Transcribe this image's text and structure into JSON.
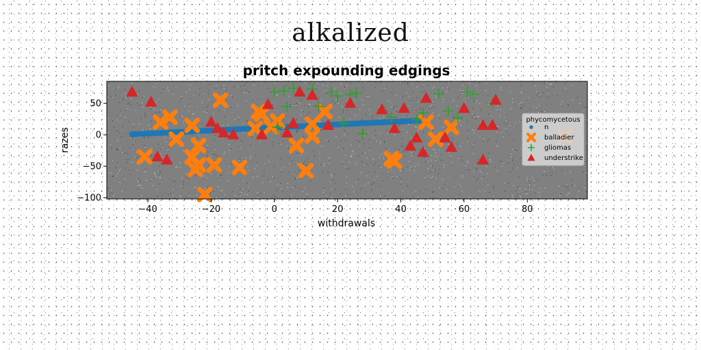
{
  "suptitle": "alkalized",
  "chart_data": {
    "type": "scatter",
    "title": "pritch expounding edgings",
    "xlabel": "withdrawals",
    "ylabel": "razes",
    "xlim": [
      -53,
      99
    ],
    "ylim": [
      -102,
      85
    ],
    "xticks": [
      -40,
      -20,
      0,
      20,
      40,
      60,
      80
    ],
    "yticks": [
      -100,
      -50,
      0,
      50
    ],
    "grid": false,
    "legend": {
      "title": "phycomycetous",
      "placement": "right"
    },
    "colors": {
      "plot_bg": "#808080"
    },
    "series": [
      {
        "name": "n",
        "marker": "circle",
        "color": "#1f77b4",
        "x": [
          -45,
          -44,
          -43,
          -42,
          -41,
          -40,
          -39,
          -38,
          -37,
          -36,
          -35,
          -34,
          -33,
          -32,
          -31,
          -30,
          -29,
          -28,
          -27,
          -26,
          -25,
          -24,
          -23,
          -22,
          -21,
          -20,
          -19,
          -18,
          -17,
          -16,
          -15,
          -14,
          -13,
          -12,
          -11,
          -10,
          -9,
          -8,
          -7,
          -6,
          -5,
          -4,
          -3,
          -2,
          -1,
          0,
          1,
          2,
          3,
          4,
          5,
          6,
          7,
          8,
          9,
          10,
          11,
          12,
          13,
          14,
          15,
          16,
          17,
          18,
          19,
          20,
          21,
          22,
          23,
          24,
          25,
          26,
          27,
          28,
          29,
          30,
          31,
          32,
          33,
          34,
          35,
          36,
          37,
          38,
          39,
          40,
          41,
          42,
          43,
          44,
          45,
          46
        ],
        "y": [
          0.9,
          1.1,
          1.3,
          1.6,
          1.8,
          2.1,
          2.3,
          2.5,
          2.8,
          3.0,
          3.2,
          3.5,
          3.7,
          4.0,
          4.2,
          4.4,
          4.7,
          4.9,
          5.2,
          5.4,
          5.6,
          5.9,
          6.1,
          6.4,
          6.6,
          6.8,
          7.1,
          7.3,
          7.6,
          7.8,
          8.0,
          8.3,
          8.5,
          8.8,
          9.0,
          9.2,
          9.5,
          9.7,
          10.0,
          10.2,
          10.4,
          10.7,
          10.9,
          11.2,
          11.4,
          11.6,
          11.9,
          12.1,
          12.4,
          12.6,
          12.8,
          13.1,
          13.3,
          13.6,
          13.8,
          14.0,
          14.3,
          14.5,
          14.8,
          15.0,
          15.2,
          15.5,
          15.7,
          16.0,
          16.2,
          16.4,
          16.7,
          16.9,
          17.2,
          17.4,
          17.6,
          17.9,
          18.1,
          18.4,
          18.6,
          18.8,
          19.1,
          19.3,
          19.6,
          19.8,
          20.0,
          20.3,
          20.5,
          20.8,
          21.0,
          21.2,
          21.5,
          21.7,
          22.0,
          22.2,
          22.4,
          22.7
        ]
      },
      {
        "name": "balladier",
        "marker": "x-filled",
        "color": "#ff7f0e",
        "x": [
          -41,
          -36,
          -33,
          -31,
          -26,
          -26,
          -25,
          -24,
          -24,
          -22,
          -19,
          -17,
          -11,
          -6,
          -5,
          -4,
          -1,
          1,
          7,
          10,
          12,
          12,
          16,
          37,
          38,
          48,
          51,
          56,
          92
        ],
        "y": [
          -35,
          20,
          28,
          -7,
          15,
          -35,
          -55,
          -48,
          -17,
          -95,
          -48,
          55,
          -52,
          10,
          37,
          33,
          13,
          22,
          -17,
          -57,
          -2,
          17,
          37,
          -38,
          -42,
          20,
          -7,
          12,
          -3
        ]
      },
      {
        "name": "gliomas",
        "marker": "plus",
        "color": "#2ca02c",
        "x": [
          0,
          3,
          6,
          12,
          14,
          18,
          20,
          24,
          26,
          22,
          28,
          37,
          45,
          52,
          55,
          58,
          61,
          63,
          69,
          1,
          4,
          47
        ],
        "y": [
          68,
          70,
          74,
          73,
          45,
          68,
          62,
          64,
          67,
          18,
          2,
          28,
          24,
          65,
          38,
          27,
          68,
          64,
          50,
          12,
          45,
          35
        ],
        "size_note": ""
      },
      {
        "name": "understrike",
        "marker": "triangle",
        "color": "#d62728",
        "x": [
          -45,
          -39,
          -37,
          -34,
          -20,
          -18,
          -16,
          -13,
          -4,
          -2,
          4,
          6,
          8,
          12,
          17,
          24,
          34,
          38,
          41,
          43,
          45,
          47,
          48,
          54,
          56,
          60,
          66,
          66,
          69,
          70
        ],
        "y": [
          68,
          52,
          -35,
          -40,
          20,
          10,
          3,
          0,
          0,
          48,
          3,
          18,
          68,
          63,
          15,
          50,
          40,
          10,
          42,
          -18,
          -5,
          -28,
          58,
          -5,
          -20,
          42,
          -40,
          15,
          15,
          55
        ]
      }
    ]
  }
}
